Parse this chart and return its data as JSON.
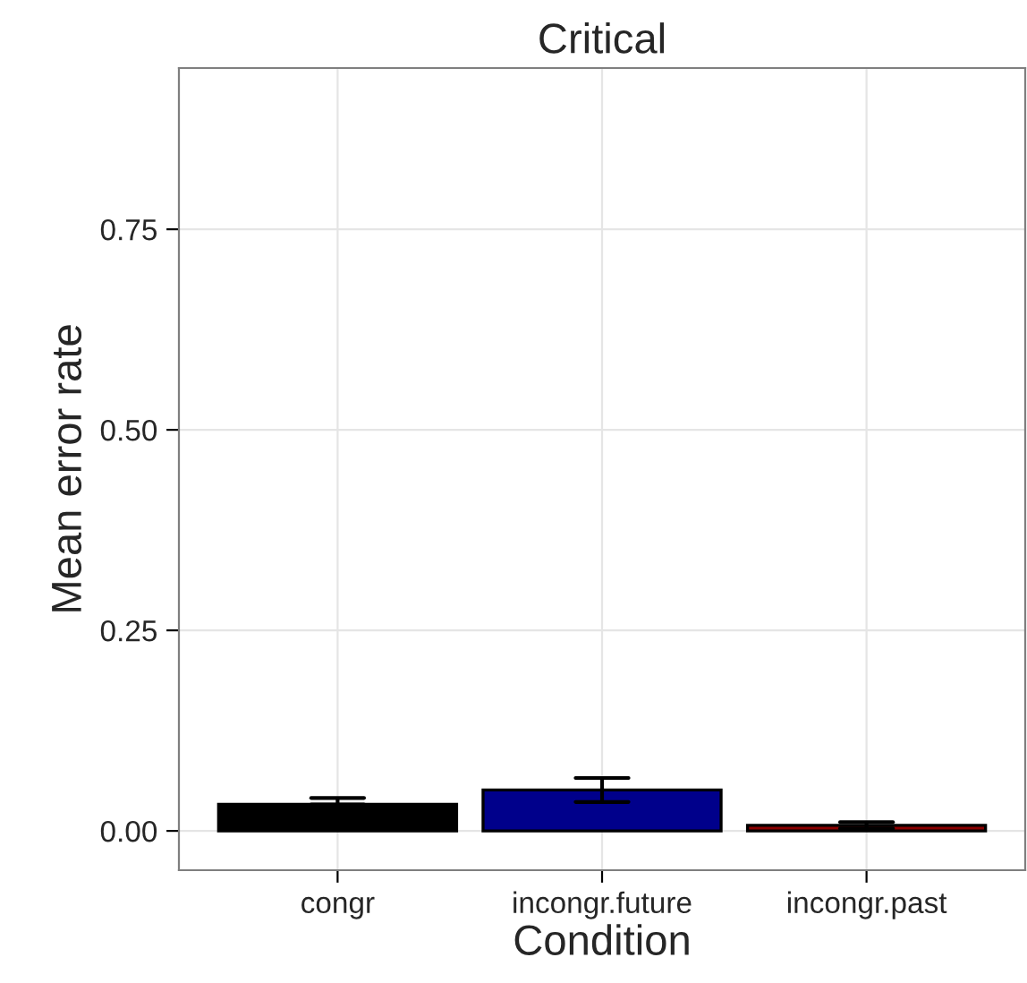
{
  "chart_data": {
    "type": "bar",
    "title": "Critical",
    "xlabel": "Condition",
    "ylabel": "Mean error rate",
    "categories": [
      "congr",
      "incongr.future",
      "incongr.past"
    ],
    "values": [
      0.033,
      0.051,
      0.007
    ],
    "errors": [
      [
        0.033,
        0.041
      ],
      [
        0.036,
        0.066
      ],
      [
        0.003,
        0.011
      ]
    ],
    "colors": [
      "#000000",
      "#00008b",
      "#8b0000"
    ],
    "ylim": [
      -0.049,
      0.951
    ],
    "yticks": [
      {
        "value": 0,
        "label": "0.00"
      },
      0.25,
      {
        "value": 0.5,
        "label": "0.50"
      },
      0.75
    ],
    "grid": true
  }
}
